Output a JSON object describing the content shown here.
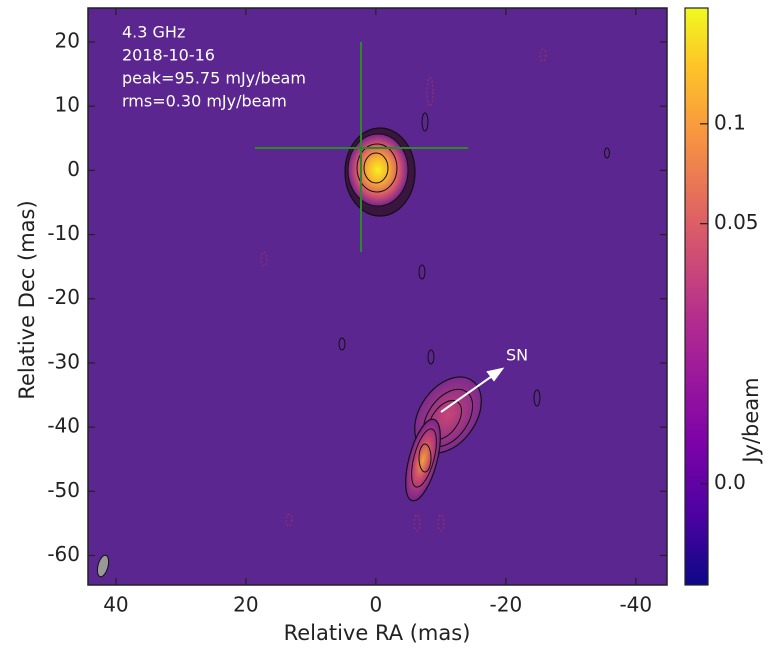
{
  "chart_data": {
    "type": "image",
    "annotations": [
      "4.3 GHz",
      "2018-10-16",
      "peak=95.75 mJy/beam",
      "rms=0.30 mJy/beam"
    ],
    "feature_label": "SN",
    "xlabel": "Relative RA (mas)",
    "ylabel": "Relative Dec (mas)",
    "xlim": [
      44.3,
      -44.8
    ],
    "xticks": [
      40,
      20,
      0,
      -20,
      -40
    ],
    "ylim": [
      -64.6,
      25.3
    ],
    "yticks": [
      20,
      10,
      0,
      -10,
      -20,
      -30,
      -40,
      -50,
      -60
    ],
    "colorbar": {
      "label": "Jy/beam",
      "clim": [
        -0.0132,
        0.219
      ],
      "stretch": "asinh",
      "asinh_a": 0.018,
      "ticks": [
        0.1,
        0.05,
        {
          "value": 0,
          "label": "0.0"
        }
      ]
    }
  }
}
